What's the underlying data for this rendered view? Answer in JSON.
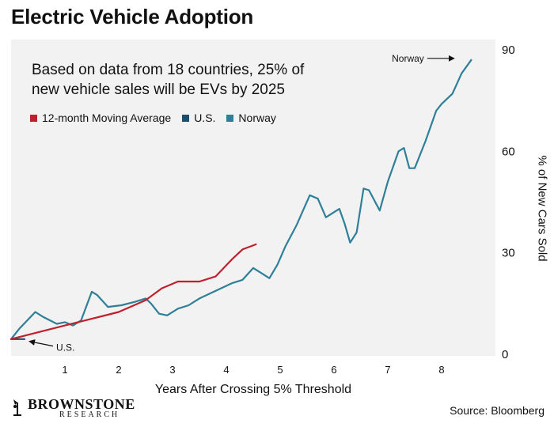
{
  "header": {
    "title": "Electric Vehicle Adoption"
  },
  "footer": {
    "source": "Source: Bloomberg",
    "logo_line1": "BROWNSTONE",
    "logo_line2": "RESEARCH"
  },
  "colors": {
    "ma": "#c0202e",
    "us": "#1d4e6e",
    "norway": "#2e7f97",
    "plot_bg": "#f2f2f2"
  },
  "chart_data": {
    "type": "line",
    "title": "Based on data from 18 countries, 25% of new vehicle sales will be EVs by 2025",
    "xlabel": "Years After Crossing 5% Threshold",
    "ylabel": "% of New Cars Sold",
    "xlim": [
      0,
      9
    ],
    "ylim": [
      0,
      90
    ],
    "xticks": [
      1,
      2,
      3,
      4,
      5,
      6,
      7,
      8
    ],
    "yticks": [
      0,
      30,
      60,
      90
    ],
    "legend_position": "top-left",
    "series": [
      {
        "name": "12-month Moving Average",
        "color": "#c0202e",
        "points": [
          [
            0,
            4.5
          ],
          [
            0.5,
            6.5
          ],
          [
            1,
            8.5
          ],
          [
            1.5,
            10.5
          ],
          [
            2,
            12.5
          ],
          [
            2.5,
            16
          ],
          [
            2.8,
            19.5
          ],
          [
            3.1,
            21.5
          ],
          [
            3.5,
            21.5
          ],
          [
            3.8,
            23
          ],
          [
            4.1,
            28
          ],
          [
            4.3,
            31
          ],
          [
            4.55,
            32.5
          ]
        ]
      },
      {
        "name": "U.S.",
        "color": "#1d4e6e",
        "points": [
          [
            0,
            4.5
          ],
          [
            0.25,
            4.5
          ]
        ]
      },
      {
        "name": "Norway",
        "color": "#2e7f97",
        "points": [
          [
            0,
            4.5
          ],
          [
            0.15,
            7.5
          ],
          [
            0.45,
            12.5
          ],
          [
            0.6,
            11
          ],
          [
            0.85,
            9
          ],
          [
            1,
            9.5
          ],
          [
            1.15,
            8.5
          ],
          [
            1.3,
            10
          ],
          [
            1.5,
            18.5
          ],
          [
            1.6,
            17.5
          ],
          [
            1.8,
            14
          ],
          [
            2.05,
            14.5
          ],
          [
            2.3,
            15.5
          ],
          [
            2.5,
            16.5
          ],
          [
            2.6,
            15
          ],
          [
            2.75,
            12
          ],
          [
            2.9,
            11.5
          ],
          [
            3.1,
            13.5
          ],
          [
            3.3,
            14.5
          ],
          [
            3.5,
            16.5
          ],
          [
            3.7,
            18
          ],
          [
            3.9,
            19.5
          ],
          [
            4.1,
            21
          ],
          [
            4.3,
            22
          ],
          [
            4.5,
            25.5
          ],
          [
            4.65,
            24
          ],
          [
            4.8,
            22.5
          ],
          [
            4.95,
            26.5
          ],
          [
            5.1,
            32
          ],
          [
            5.3,
            38
          ],
          [
            5.55,
            47
          ],
          [
            5.7,
            46
          ],
          [
            5.85,
            40.5
          ],
          [
            6.0,
            42
          ],
          [
            6.1,
            43
          ],
          [
            6.2,
            38.5
          ],
          [
            6.3,
            33
          ],
          [
            6.42,
            36
          ],
          [
            6.55,
            49
          ],
          [
            6.65,
            48.5
          ],
          [
            6.85,
            42.5
          ],
          [
            7.0,
            51
          ],
          [
            7.2,
            60
          ],
          [
            7.3,
            61
          ],
          [
            7.4,
            55
          ],
          [
            7.5,
            55
          ],
          [
            7.7,
            63
          ],
          [
            7.9,
            72
          ],
          [
            8.0,
            74
          ],
          [
            8.2,
            77
          ],
          [
            8.37,
            83
          ],
          [
            8.55,
            87
          ]
        ]
      }
    ],
    "annotations": [
      {
        "text": "U.S.",
        "arrow_to": [
          0.28,
          4.3
        ]
      },
      {
        "text": "Norway",
        "arrow_to": [
          8.35,
          87
        ]
      }
    ]
  }
}
